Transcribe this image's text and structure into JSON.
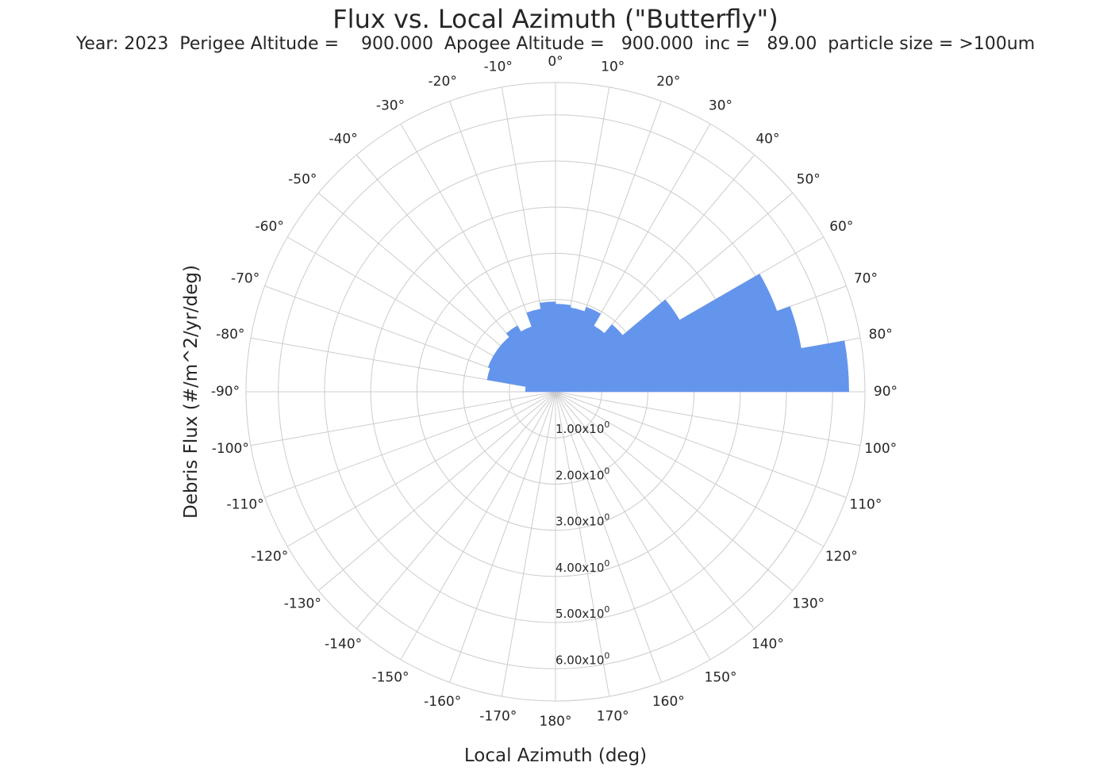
{
  "chart_data": {
    "type": "polar-bar",
    "title": "Flux  vs. Local Azimuth (\"Butterfly\")",
    "subtitle": "Year: 2023  Perigee Altitude =    900.000  Apogee Altitude =   900.000  inc =   89.00  particle size = >100um",
    "xlabel": "Local Azimuth (deg)",
    "ylabel": "Debris Flux  (#/m^2/yr/deg)",
    "theta_zero_location": "top",
    "theta_direction": "clockwise",
    "theta_ticks": [
      0,
      10,
      20,
      30,
      40,
      50,
      60,
      70,
      80,
      90,
      100,
      110,
      120,
      130,
      140,
      150,
      160,
      170,
      180,
      -170,
      -160,
      -150,
      -140,
      -130,
      -120,
      -110,
      -100,
      -90,
      -80,
      -70,
      -60,
      -50,
      -40,
      -30,
      -20,
      -10
    ],
    "theta_tick_labels": [
      "0°",
      "10°",
      "20°",
      "30°",
      "40°",
      "50°",
      "60°",
      "70°",
      "80°",
      "90°",
      "100°",
      "110°",
      "120°",
      "130°",
      "140°",
      "150°",
      "160°",
      "170°",
      "180°",
      "-170°",
      "-160°",
      "-150°",
      "-140°",
      "-130°",
      "-120°",
      "-110°",
      "-100°",
      "-90°",
      "-80°",
      "-70°",
      "-60°",
      "-50°",
      "-40°",
      "-30°",
      "-20°",
      "-10°"
    ],
    "r_ticks": [
      1,
      2,
      3,
      4,
      5,
      6
    ],
    "r_tick_labels": [
      {
        "mantissa": "1.00x10",
        "exp": "0"
      },
      {
        "mantissa": "2.00x10",
        "exp": "0"
      },
      {
        "mantissa": "3.00x10",
        "exp": "0"
      },
      {
        "mantissa": "4.00x10",
        "exp": "0"
      },
      {
        "mantissa": "5.00x10",
        "exp": "0"
      },
      {
        "mantissa": "6.00x10",
        "exp": "0"
      }
    ],
    "rlim": [
      0,
      6.7
    ],
    "grid": true,
    "bar_color": "#6495ED",
    "bin_width_deg": 10,
    "series": [
      {
        "bin_center_deg": [
          -85,
          -75,
          -65,
          -55,
          -45,
          -35,
          -25,
          -15,
          -5,
          5,
          15,
          25,
          35,
          45,
          55,
          65,
          75,
          85
        ],
        "values": [
          0.65,
          1.5,
          1.55,
          1.55,
          1.55,
          1.65,
          1.5,
          1.82,
          1.95,
          1.9,
          1.85,
          1.95,
          1.65,
          1.9,
          3.1,
          5.1,
          5.4,
          6.35
        ]
      }
    ]
  }
}
